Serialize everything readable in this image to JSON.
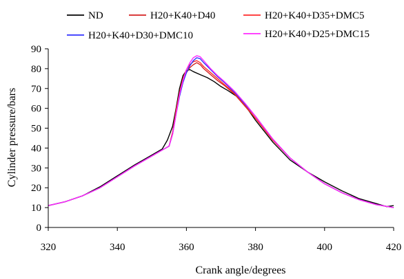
{
  "chart_data": {
    "type": "line",
    "title": "",
    "xlabel": "Crank angle/degrees",
    "ylabel": "Cylinder pressure/bars",
    "xlim": [
      320,
      420
    ],
    "ylim": [
      0,
      90
    ],
    "x_ticks": [
      "320",
      "340",
      "360",
      "380",
      "400",
      "420"
    ],
    "y_ticks": [
      "0",
      "10",
      "20",
      "30",
      "40",
      "50",
      "60",
      "70",
      "80",
      "90"
    ],
    "grid": false,
    "legend": "top",
    "series": [
      {
        "name": "ND",
        "color": "#000000",
        "points": [
          [
            320,
            11
          ],
          [
            325,
            13
          ],
          [
            330,
            16
          ],
          [
            335,
            20.5
          ],
          [
            340,
            26
          ],
          [
            345,
            31.5
          ],
          [
            350,
            36.5
          ],
          [
            353,
            39.5
          ],
          [
            354.5,
            44
          ],
          [
            356,
            51
          ],
          [
            357,
            60
          ],
          [
            358,
            70
          ],
          [
            359,
            76.5
          ],
          [
            360,
            79
          ],
          [
            361,
            79.5
          ],
          [
            362,
            78.5
          ],
          [
            364,
            77
          ],
          [
            366,
            75.5
          ],
          [
            368,
            73.5
          ],
          [
            370,
            71
          ],
          [
            372,
            69
          ],
          [
            375,
            65.5
          ],
          [
            378,
            59
          ],
          [
            380,
            54
          ],
          [
            385,
            43
          ],
          [
            390,
            34
          ],
          [
            395,
            28
          ],
          [
            400,
            23
          ],
          [
            405,
            18.5
          ],
          [
            410,
            14.5
          ],
          [
            415,
            12
          ],
          [
            418,
            10.5
          ],
          [
            420,
            11
          ]
        ]
      },
      {
        "name": "H20+K40+D40",
        "color": "#d42020",
        "points": [
          [
            320,
            11
          ],
          [
            325,
            13
          ],
          [
            330,
            16
          ],
          [
            335,
            20
          ],
          [
            340,
            25.5
          ],
          [
            345,
            31
          ],
          [
            350,
            36
          ],
          [
            353,
            39
          ],
          [
            355,
            41
          ],
          [
            356,
            48
          ],
          [
            357,
            58
          ],
          [
            358,
            67
          ],
          [
            359,
            74
          ],
          [
            360,
            78
          ],
          [
            361,
            80.5
          ],
          [
            362,
            82
          ],
          [
            363,
            83
          ],
          [
            364,
            82
          ],
          [
            365,
            80
          ],
          [
            367,
            77
          ],
          [
            369,
            74
          ],
          [
            371,
            71.5
          ],
          [
            374,
            67
          ],
          [
            377,
            61
          ],
          [
            380,
            55
          ],
          [
            385,
            44
          ],
          [
            390,
            35
          ],
          [
            395,
            28
          ],
          [
            400,
            22
          ],
          [
            405,
            17.5
          ],
          [
            410,
            14
          ],
          [
            415,
            11.5
          ],
          [
            420,
            10
          ]
        ]
      },
      {
        "name": "H20+K40+D35+DMC5",
        "color": "#ff2a2a",
        "points": [
          [
            320,
            11
          ],
          [
            325,
            13
          ],
          [
            330,
            16
          ],
          [
            335,
            20
          ],
          [
            340,
            25.5
          ],
          [
            345,
            31
          ],
          [
            350,
            36
          ],
          [
            353,
            39
          ],
          [
            355,
            41
          ],
          [
            356,
            48
          ],
          [
            357,
            59
          ],
          [
            358,
            68
          ],
          [
            359,
            75
          ],
          [
            360,
            79.5
          ],
          [
            361,
            82
          ],
          [
            362,
            83.5
          ],
          [
            363,
            84
          ],
          [
            364,
            83
          ],
          [
            365,
            81
          ],
          [
            367,
            78
          ],
          [
            369,
            75
          ],
          [
            371,
            72
          ],
          [
            374,
            67.5
          ],
          [
            377,
            61.5
          ],
          [
            380,
            55
          ],
          [
            385,
            44
          ],
          [
            390,
            35
          ],
          [
            395,
            28
          ],
          [
            400,
            22
          ],
          [
            405,
            17.5
          ],
          [
            410,
            14
          ],
          [
            415,
            11.5
          ],
          [
            420,
            10
          ]
        ]
      },
      {
        "name": "H20+K40+D30+DMC10",
        "color": "#3030ff",
        "points": [
          [
            320,
            11
          ],
          [
            325,
            13
          ],
          [
            330,
            16
          ],
          [
            335,
            20
          ],
          [
            340,
            25.5
          ],
          [
            345,
            31
          ],
          [
            350,
            36
          ],
          [
            353,
            39
          ],
          [
            355,
            41
          ],
          [
            356,
            47
          ],
          [
            357,
            57
          ],
          [
            358,
            66
          ],
          [
            359,
            73
          ],
          [
            360,
            78
          ],
          [
            361,
            81.5
          ],
          [
            362,
            84
          ],
          [
            363,
            85.5
          ],
          [
            364,
            85
          ],
          [
            365,
            83
          ],
          [
            367,
            79.5
          ],
          [
            369,
            76
          ],
          [
            371,
            73
          ],
          [
            374,
            68
          ],
          [
            377,
            62
          ],
          [
            380,
            56
          ],
          [
            385,
            44.5
          ],
          [
            390,
            35
          ],
          [
            395,
            28
          ],
          [
            400,
            22
          ],
          [
            405,
            17.5
          ],
          [
            410,
            14
          ],
          [
            415,
            11.5
          ],
          [
            420,
            10
          ]
        ]
      },
      {
        "name": "H20+K40+D25+DMC15",
        "color": "#ff2aff",
        "points": [
          [
            320,
            11
          ],
          [
            325,
            13
          ],
          [
            330,
            16
          ],
          [
            335,
            20
          ],
          [
            340,
            25.5
          ],
          [
            345,
            31
          ],
          [
            350,
            36
          ],
          [
            353,
            39
          ],
          [
            355,
            41
          ],
          [
            356,
            47
          ],
          [
            357,
            57
          ],
          [
            358,
            67
          ],
          [
            359,
            74
          ],
          [
            360,
            79.5
          ],
          [
            361,
            83
          ],
          [
            362,
            85.5
          ],
          [
            363,
            86.5
          ],
          [
            364,
            86
          ],
          [
            365,
            84
          ],
          [
            367,
            80
          ],
          [
            369,
            76.5
          ],
          [
            371,
            73.5
          ],
          [
            374,
            68.5
          ],
          [
            377,
            62.5
          ],
          [
            380,
            56
          ],
          [
            385,
            44.5
          ],
          [
            390,
            35
          ],
          [
            395,
            28
          ],
          [
            400,
            22
          ],
          [
            405,
            17.5
          ],
          [
            410,
            14
          ],
          [
            415,
            11.5
          ],
          [
            420,
            10
          ]
        ]
      }
    ]
  }
}
